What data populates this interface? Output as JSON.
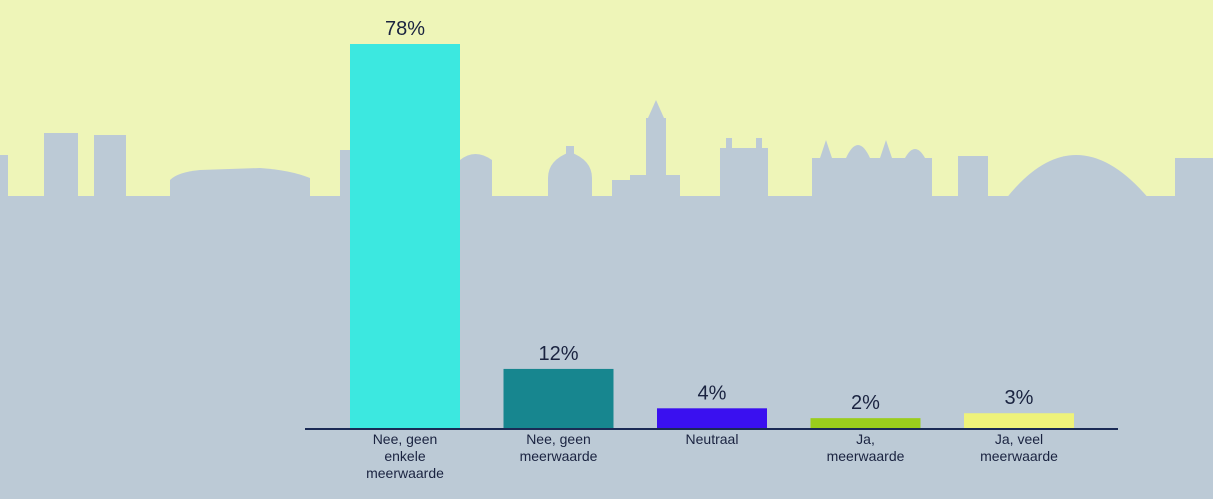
{
  "chart_data": {
    "type": "bar",
    "categories": [
      [
        "Nee, geen",
        "enkele",
        "meerwaarde"
      ],
      [
        "Nee, geen",
        "meerwaarde"
      ],
      [
        "Neutraal"
      ],
      [
        "Ja,",
        "meerwaarde"
      ],
      [
        "Ja, veel",
        "meerwaarde"
      ]
    ],
    "values": [
      78,
      12,
      4,
      2,
      3
    ],
    "value_labels": [
      "78%",
      "12%",
      "4%",
      "2%",
      "3%"
    ],
    "bar_colors": [
      "#3ce8e0",
      "#17868f",
      "#3a10f0",
      "#9acd1c",
      "#eef27a"
    ],
    "ylim": [
      0,
      80
    ],
    "title": "",
    "xlabel": "",
    "ylabel": ""
  },
  "colors": {
    "sky": "#eef5b8",
    "skyline": "#bccad6",
    "axis": "#1a2a55",
    "text": "#1a2340"
  }
}
